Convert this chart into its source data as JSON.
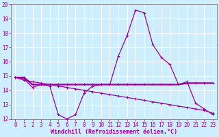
{
  "xlabel": "Windchill (Refroidissement éolien,°C)",
  "background_color": "#cceeff",
  "grid_color": "#aadddd",
  "line_color": "#990099",
  "x": [
    0,
    1,
    2,
    3,
    4,
    5,
    6,
    7,
    8,
    9,
    10,
    11,
    12,
    13,
    14,
    15,
    16,
    17,
    18,
    19,
    20,
    21,
    22,
    23
  ],
  "y_windchill": [
    14.9,
    14.8,
    14.2,
    14.4,
    14.3,
    12.3,
    12.0,
    12.3,
    13.8,
    14.3,
    14.4,
    14.4,
    16.4,
    17.8,
    19.6,
    19.4,
    17.2,
    16.3,
    15.8,
    14.4,
    14.6,
    13.1,
    12.7,
    12.3
  ],
  "y_flat": [
    14.9,
    14.9,
    14.4,
    14.4,
    14.4,
    14.4,
    14.4,
    14.4,
    14.4,
    14.4,
    14.4,
    14.4,
    14.4,
    14.4,
    14.4,
    14.4,
    14.4,
    14.4,
    14.4,
    14.4,
    14.5,
    14.5,
    14.5,
    14.5
  ],
  "y_decline": [
    14.9,
    14.7,
    14.6,
    14.5,
    14.4,
    14.3,
    14.2,
    14.1,
    14.0,
    13.9,
    13.8,
    13.7,
    13.6,
    13.5,
    13.4,
    13.3,
    13.2,
    13.1,
    13.0,
    12.9,
    12.8,
    12.7,
    12.6,
    12.4
  ],
  "ylim": [
    12,
    20
  ],
  "xlim": [
    -0.5,
    23.5
  ],
  "yticks": [
    12,
    13,
    14,
    15,
    16,
    17,
    18,
    19,
    20
  ],
  "xticks": [
    0,
    1,
    2,
    3,
    4,
    5,
    6,
    7,
    8,
    9,
    10,
    11,
    12,
    13,
    14,
    15,
    16,
    17,
    18,
    19,
    20,
    21,
    22,
    23
  ],
  "tick_fontsize": 5.5,
  "xlabel_fontsize": 6,
  "marker": "+",
  "marker_size": 3,
  "line_width": 0.9
}
